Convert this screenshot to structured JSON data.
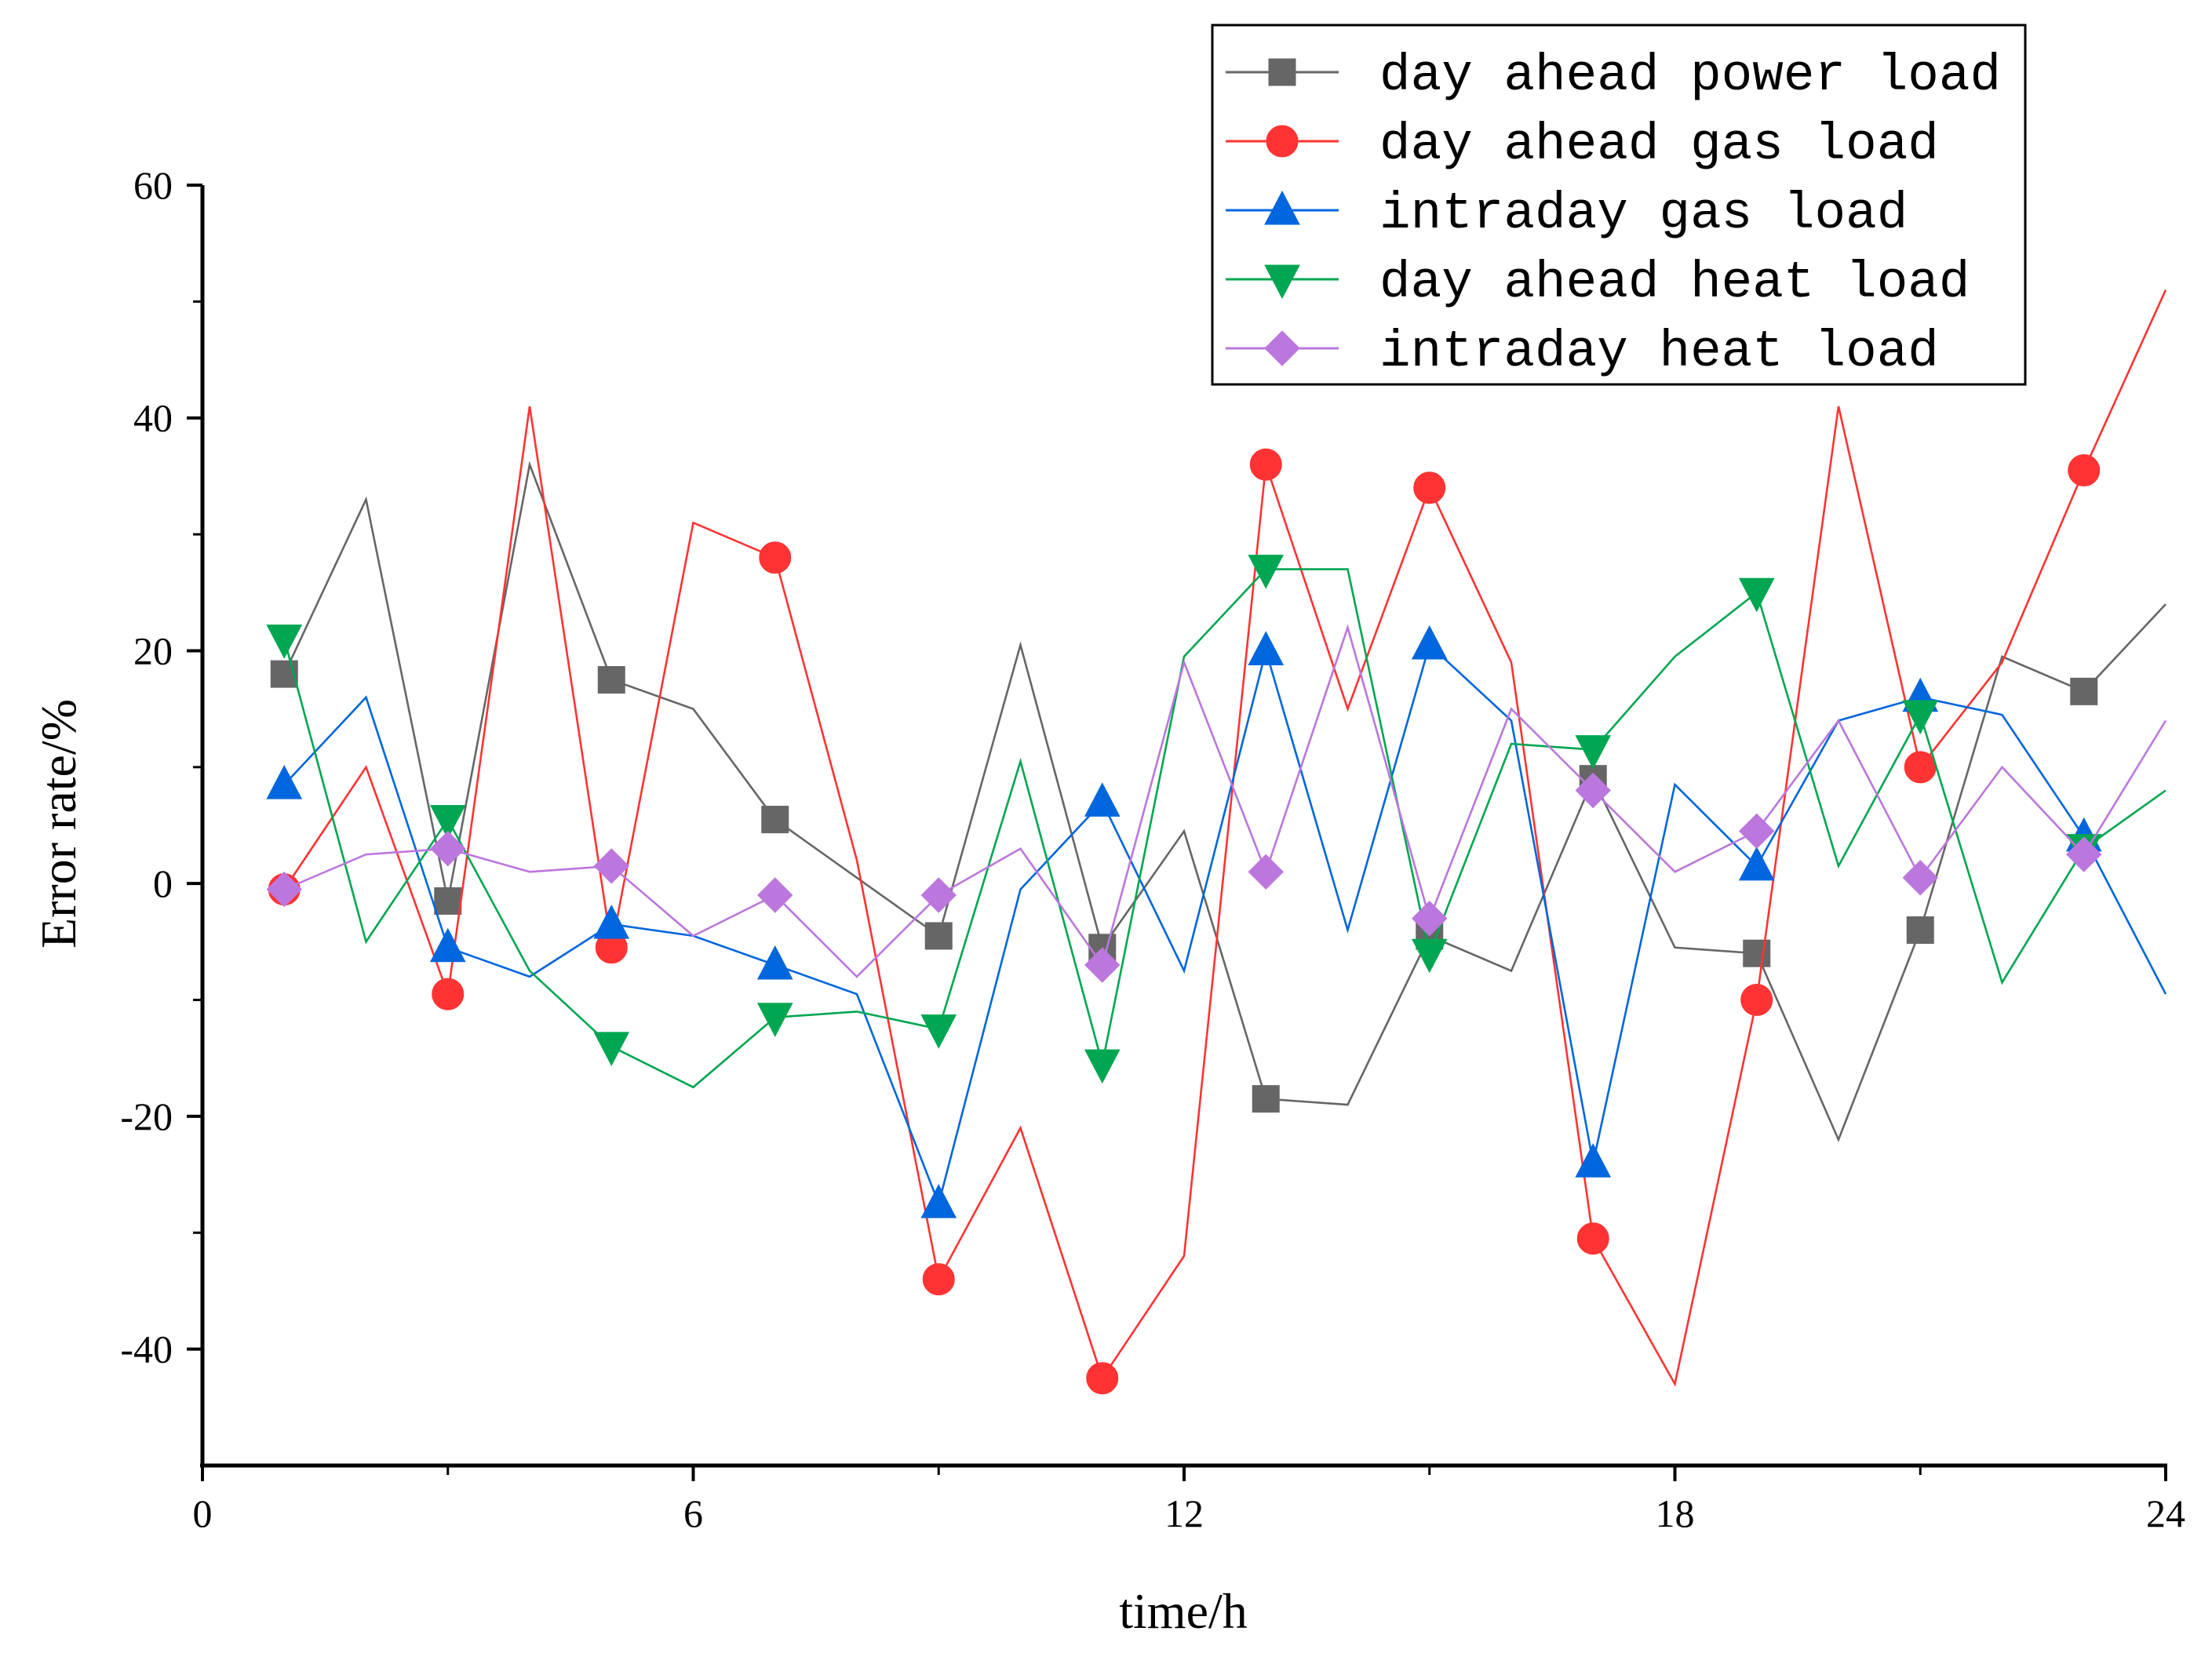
{
  "chart_data": {
    "type": "line",
    "title": "",
    "xlabel": "time/h",
    "ylabel": "Error rate/%",
    "xlim": [
      0,
      24
    ],
    "ylim": [
      -50,
      60
    ],
    "x_ticks": [
      0,
      6,
      12,
      18,
      24
    ],
    "y_ticks": [
      60,
      40,
      20,
      0,
      -20,
      -40
    ],
    "y_tick_labels": [
      "60",
      "40",
      "20",
      "0",
      "-20",
      "-40"
    ],
    "grid": false,
    "legend_position": "top-right",
    "x": [
      1,
      2,
      3,
      4,
      5,
      6,
      7,
      8,
      9,
      10,
      11,
      12,
      13,
      14,
      15,
      16,
      17,
      18,
      19,
      20,
      21,
      22,
      23,
      24
    ],
    "series": [
      {
        "name": "day ahead power load",
        "color": "#666666",
        "marker": "square",
        "values": [
          18,
          33,
          -1.5,
          36,
          17.5,
          15,
          5.5,
          0.5,
          -4.5,
          20.5,
          -5.5,
          4.5,
          -18.5,
          -19,
          -4.5,
          -7.5,
          9,
          -5.5,
          -6,
          -22,
          -4,
          19.5,
          16.5,
          24
        ]
      },
      {
        "name": "day ahead gas load",
        "color": "#ff3333",
        "marker": "circle",
        "values": [
          -0.5,
          10,
          -9.5,
          41,
          -5.5,
          31,
          28,
          2,
          -34,
          -21,
          -42.5,
          -32,
          36,
          15,
          34,
          19,
          -30.5,
          -43,
          -10,
          41,
          10,
          19,
          35.5,
          51
        ]
      },
      {
        "name": "intraday gas load",
        "color": "#0066dd",
        "marker": "triangle-up",
        "values": [
          8.5,
          16,
          -5.5,
          -8,
          -3.5,
          -4.5,
          -7,
          -9.5,
          -27.5,
          -0.5,
          7,
          -7.5,
          20,
          -4,
          20.5,
          14,
          -24,
          8.5,
          1.5,
          14,
          16,
          14.5,
          4,
          -9.5
        ]
      },
      {
        "name": "day ahead heat load",
        "color": "#00a651",
        "marker": "triangle-down",
        "values": [
          21,
          -5,
          5.5,
          -7.5,
          -14,
          -17.5,
          -11.5,
          -11,
          -12.5,
          10.5,
          -15.5,
          19.5,
          27,
          27,
          -6,
          12,
          11.5,
          19.5,
          25,
          1.5,
          14.5,
          -8.5,
          3,
          8
        ]
      },
      {
        "name": "intraday heat load",
        "color": "#bb77dd",
        "marker": "diamond",
        "values": [
          -0.5,
          2.5,
          3,
          1,
          1.5,
          -4.5,
          -1,
          -8,
          -1,
          3,
          -7,
          19,
          1,
          22,
          -3,
          15,
          8,
          1,
          4.5,
          14,
          0.5,
          10,
          2.5,
          14
        ]
      }
    ]
  }
}
